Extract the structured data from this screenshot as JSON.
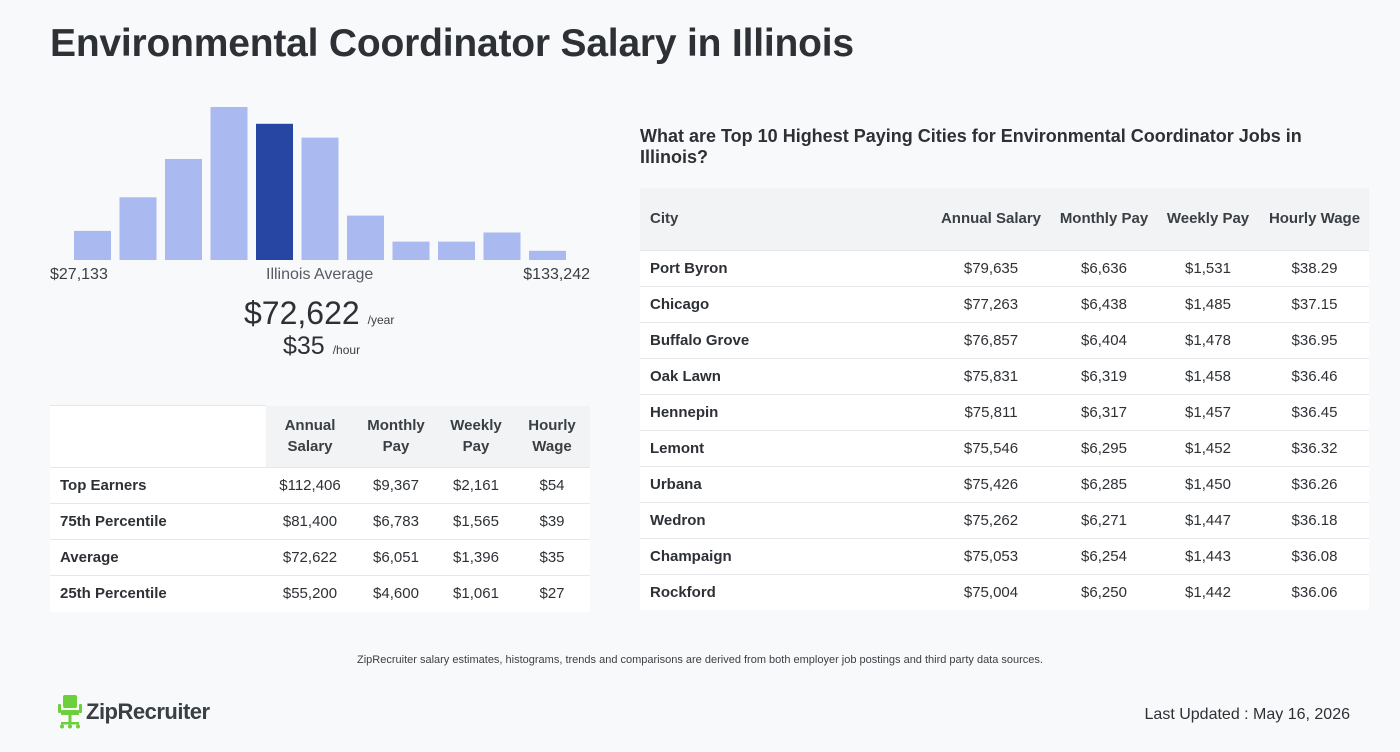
{
  "title": "Environmental Coordinator Salary in Illinois",
  "histogram": {
    "min_label": "$27,133",
    "mid_label": "Illinois Average",
    "max_label": "$133,242",
    "bar_color": "#aab9ef",
    "highlight_color": "#2745a3"
  },
  "chart_data": {
    "type": "bar",
    "categories": [
      "1",
      "2",
      "3",
      "4",
      "5",
      "6",
      "7",
      "8",
      "9",
      "10",
      "11"
    ],
    "values": [
      19,
      41,
      66,
      100,
      89,
      80,
      29,
      12,
      12,
      18,
      6
    ],
    "highlight_index": 4,
    "title": "",
    "xlabel": "",
    "ylabel": "",
    "ylim": [
      0,
      100
    ],
    "grid": false
  },
  "average": {
    "yearly": "$72,622",
    "yearly_unit": "/year",
    "hourly": "$35",
    "hourly_unit": "/hour"
  },
  "percentile_table": {
    "headers": [
      "Annual Salary",
      "Monthly Pay",
      "Weekly Pay",
      "Hourly Wage"
    ],
    "rows": [
      {
        "label": "Top Earners",
        "annual": "$112,406",
        "monthly": "$9,367",
        "weekly": "$2,161",
        "hourly": "$54"
      },
      {
        "label": "75th Percentile",
        "annual": "$81,400",
        "monthly": "$6,783",
        "weekly": "$1,565",
        "hourly": "$39"
      },
      {
        "label": "Average",
        "annual": "$72,622",
        "monthly": "$6,051",
        "weekly": "$1,396",
        "hourly": "$35"
      },
      {
        "label": "25th Percentile",
        "annual": "$55,200",
        "monthly": "$4,600",
        "weekly": "$1,061",
        "hourly": "$27"
      }
    ]
  },
  "cities": {
    "title": "What are Top 10 Highest Paying Cities for Environmental Coordinator Jobs in Illinois?",
    "headers": [
      "City",
      "Annual Salary",
      "Monthly Pay",
      "Weekly Pay",
      "Hourly Wage"
    ],
    "rows": [
      {
        "city": "Port Byron",
        "annual": "$79,635",
        "monthly": "$6,636",
        "weekly": "$1,531",
        "hourly": "$38.29"
      },
      {
        "city": "Chicago",
        "annual": "$77,263",
        "monthly": "$6,438",
        "weekly": "$1,485",
        "hourly": "$37.15"
      },
      {
        "city": "Buffalo Grove",
        "annual": "$76,857",
        "monthly": "$6,404",
        "weekly": "$1,478",
        "hourly": "$36.95"
      },
      {
        "city": "Oak Lawn",
        "annual": "$75,831",
        "monthly": "$6,319",
        "weekly": "$1,458",
        "hourly": "$36.46"
      },
      {
        "city": "Hennepin",
        "annual": "$75,811",
        "monthly": "$6,317",
        "weekly": "$1,457",
        "hourly": "$36.45"
      },
      {
        "city": "Lemont",
        "annual": "$75,546",
        "monthly": "$6,295",
        "weekly": "$1,452",
        "hourly": "$36.32"
      },
      {
        "city": "Urbana",
        "annual": "$75,426",
        "monthly": "$6,285",
        "weekly": "$1,450",
        "hourly": "$36.26"
      },
      {
        "city": "Wedron",
        "annual": "$75,262",
        "monthly": "$6,271",
        "weekly": "$1,447",
        "hourly": "$36.18"
      },
      {
        "city": "Champaign",
        "annual": "$75,053",
        "monthly": "$6,254",
        "weekly": "$1,443",
        "hourly": "$36.08"
      },
      {
        "city": "Rockford",
        "annual": "$75,004",
        "monthly": "$6,250",
        "weekly": "$1,442",
        "hourly": "$36.06"
      }
    ]
  },
  "footnote": "ZipRecruiter salary estimates, histograms, trends and comparisons are derived from both employer job postings and third party data sources.",
  "logo": {
    "text": "ZipRecruiter",
    "icon": "ziprecruiter-chair-icon",
    "color": "#6ccf3c"
  },
  "last_updated": "Last Updated : May 16, 2026"
}
